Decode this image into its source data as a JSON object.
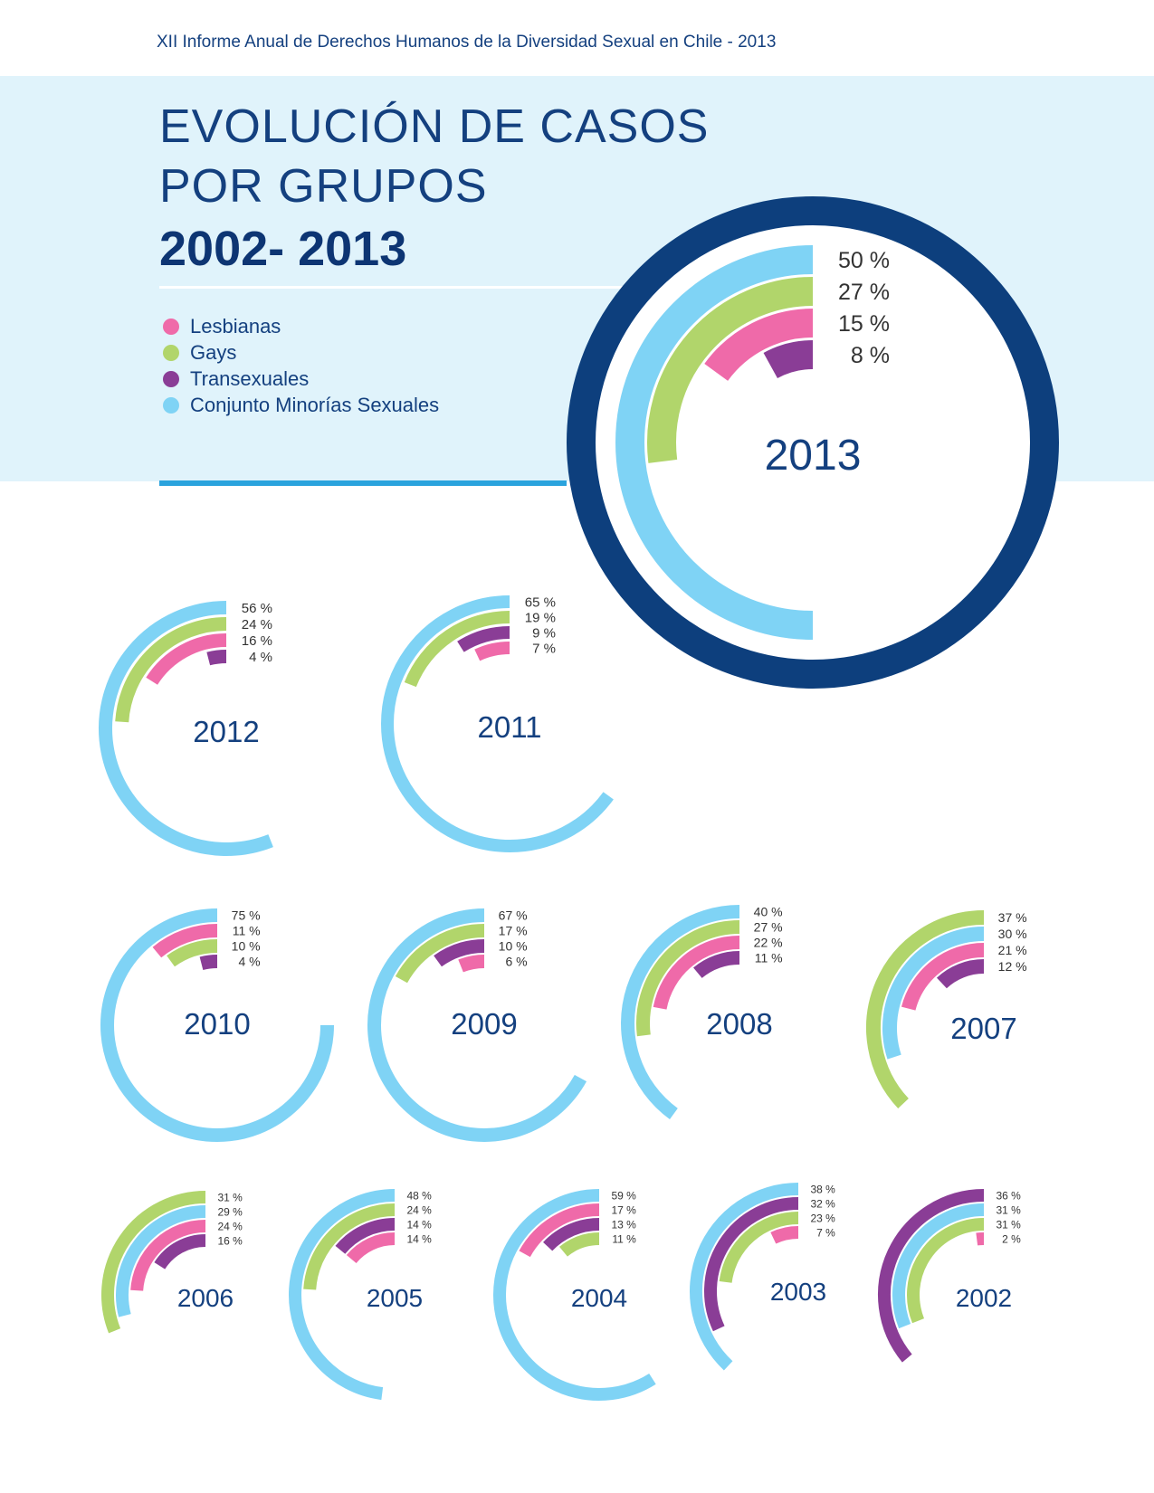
{
  "header": {
    "text": "XII Informe Anual de Derechos Humanos de la Diversidad Sexual en Chile - 2013"
  },
  "title": {
    "line1": "EVOLUCIÓN DE CASOS",
    "line2": "POR GRUPOS",
    "years": "2002- 2013"
  },
  "colors": {
    "lesbianas": "#ef6aa9",
    "gays": "#b1d56b",
    "transexuales": "#8a3d96",
    "conjunto": "#7fd3f5",
    "ring": "#0d3f7d"
  },
  "legend": [
    {
      "key": "lesbianas",
      "label": "Lesbianas"
    },
    {
      "key": "gays",
      "label": "Gays"
    },
    {
      "key": "transexuales",
      "label": "Transexuales"
    },
    {
      "key": "conjunto",
      "label": "Conjunto Minorías Sexuales"
    }
  ],
  "chart_data": {
    "type": "radial_bar",
    "unit": "%",
    "charts": [
      {
        "year": "2013",
        "rings": [
          {
            "series": "conjunto",
            "value": 50,
            "label": "50 %"
          },
          {
            "series": "gays",
            "value": 27,
            "label": "27 %"
          },
          {
            "series": "lesbianas",
            "value": 15,
            "label": "15 %"
          },
          {
            "series": "transexuales",
            "value": 8,
            "label": "8 %"
          }
        ]
      },
      {
        "year": "2012",
        "rings": [
          {
            "series": "conjunto",
            "value": 56,
            "label": "56 %"
          },
          {
            "series": "gays",
            "value": 24,
            "label": "24 %"
          },
          {
            "series": "lesbianas",
            "value": 16,
            "label": "16 %"
          },
          {
            "series": "transexuales",
            "value": 4,
            "label": "4 %"
          }
        ]
      },
      {
        "year": "2011",
        "rings": [
          {
            "series": "conjunto",
            "value": 65,
            "label": "65 %"
          },
          {
            "series": "gays",
            "value": 19,
            "label": "19 %"
          },
          {
            "series": "transexuales",
            "value": 9,
            "label": "9 %"
          },
          {
            "series": "lesbianas",
            "value": 7,
            "label": "7 %"
          }
        ]
      },
      {
        "year": "2010",
        "rings": [
          {
            "series": "conjunto",
            "value": 75,
            "label": "75 %"
          },
          {
            "series": "lesbianas",
            "value": 11,
            "label": "11 %"
          },
          {
            "series": "gays",
            "value": 10,
            "label": "10 %"
          },
          {
            "series": "transexuales",
            "value": 4,
            "label": "4 %"
          }
        ]
      },
      {
        "year": "2009",
        "rings": [
          {
            "series": "conjunto",
            "value": 67,
            "label": "67 %"
          },
          {
            "series": "gays",
            "value": 17,
            "label": "17 %"
          },
          {
            "series": "transexuales",
            "value": 10,
            "label": "10 %"
          },
          {
            "series": "lesbianas",
            "value": 6,
            "label": "6 %"
          }
        ]
      },
      {
        "year": "2008",
        "rings": [
          {
            "series": "conjunto",
            "value": 40,
            "label": "40 %"
          },
          {
            "series": "gays",
            "value": 27,
            "label": "27 %"
          },
          {
            "series": "lesbianas",
            "value": 22,
            "label": "22 %"
          },
          {
            "series": "transexuales",
            "value": 11,
            "label": "11 %"
          }
        ]
      },
      {
        "year": "2007",
        "rings": [
          {
            "series": "gays",
            "value": 37,
            "label": "37 %"
          },
          {
            "series": "conjunto",
            "value": 30,
            "label": "30 %"
          },
          {
            "series": "lesbianas",
            "value": 21,
            "label": "21 %"
          },
          {
            "series": "transexuales",
            "value": 12,
            "label": "12 %"
          }
        ]
      },
      {
        "year": "2006",
        "rings": [
          {
            "series": "gays",
            "value": 31,
            "label": "31 %"
          },
          {
            "series": "conjunto",
            "value": 29,
            "label": "29 %"
          },
          {
            "series": "lesbianas",
            "value": 24,
            "label": "24 %"
          },
          {
            "series": "transexuales",
            "value": 16,
            "label": "16 %"
          }
        ]
      },
      {
        "year": "2005",
        "rings": [
          {
            "series": "conjunto",
            "value": 48,
            "label": "48 %"
          },
          {
            "series": "gays",
            "value": 24,
            "label": "24 %"
          },
          {
            "series": "transexuales",
            "value": 14,
            "label": "14 %"
          },
          {
            "series": "lesbianas",
            "value": 14,
            "label": "14 %"
          }
        ]
      },
      {
        "year": "2004",
        "rings": [
          {
            "series": "conjunto",
            "value": 59,
            "label": "59 %"
          },
          {
            "series": "lesbianas",
            "value": 17,
            "label": "17 %"
          },
          {
            "series": "transexuales",
            "value": 13,
            "label": "13 %"
          },
          {
            "series": "gays",
            "value": 11,
            "label": "11 %"
          }
        ]
      },
      {
        "year": "2003",
        "rings": [
          {
            "series": "conjunto",
            "value": 38,
            "label": "38 %"
          },
          {
            "series": "transexuales",
            "value": 32,
            "label": "32 %"
          },
          {
            "series": "gays",
            "value": 23,
            "label": "23 %"
          },
          {
            "series": "lesbianas",
            "value": 7,
            "label": "7 %"
          }
        ]
      },
      {
        "year": "2002",
        "rings": [
          {
            "series": "transexuales",
            "value": 36,
            "label": "36 %"
          },
          {
            "series": "conjunto",
            "value": 31,
            "label": "31 %"
          },
          {
            "series": "gays",
            "value": 31,
            "label": "31 %"
          },
          {
            "series": "lesbianas",
            "value": 2,
            "label": "2 %"
          }
        ]
      }
    ]
  }
}
